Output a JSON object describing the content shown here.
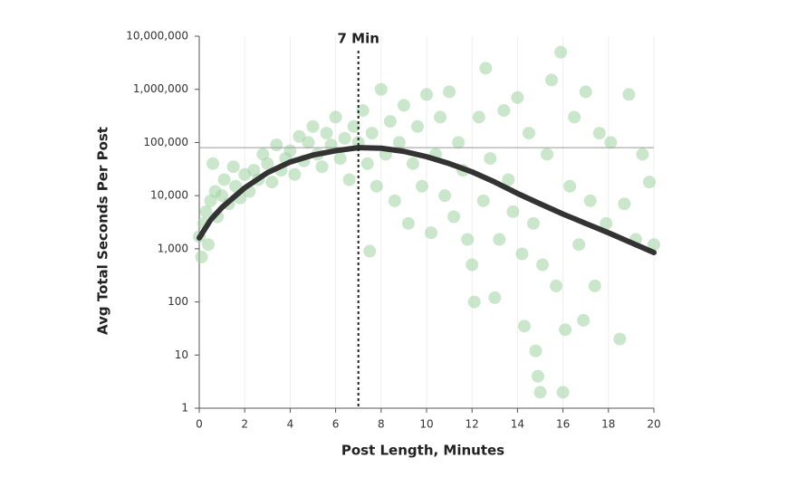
{
  "chart_data": {
    "type": "scatter",
    "x_label": "Post Length, Minutes",
    "y_label": "Avg Total Seconds Per Post",
    "xlim": [
      0,
      20
    ],
    "xticks": [
      0,
      2,
      4,
      6,
      8,
      10,
      12,
      14,
      16,
      18,
      20
    ],
    "ylim": [
      1,
      10000000
    ],
    "log_y": true,
    "grid": true,
    "yticks": [
      1,
      10,
      100,
      {
        "value": 1000,
        "label": "1,000"
      },
      {
        "value": 10000,
        "label": "10,000"
      },
      {
        "value": 100000,
        "label": "100,000"
      },
      {
        "value": 1000000,
        "label": "1,000,000"
      },
      {
        "value": 10000000,
        "label": "10,000,000"
      }
    ],
    "points": {
      "color": "#9fd4a3",
      "x": [
        0,
        0.1,
        0.2,
        0.3,
        0.4,
        0.5,
        0.6,
        0.7,
        0.8,
        1,
        1.1,
        1.3,
        1.5,
        1.6,
        1.8,
        2,
        2.2,
        2.4,
        2.6,
        2.8,
        3,
        3.2,
        3.4,
        3.6,
        3.8,
        4,
        4.2,
        4.4,
        4.6,
        4.8,
        5,
        5.2,
        5.4,
        5.6,
        5.8,
        6,
        6.2,
        6.4,
        6.6,
        6.8,
        7,
        7.2,
        7.4,
        7.5,
        7.6,
        7.8,
        8,
        8.2,
        8.4,
        8.6,
        8.8,
        9,
        9.2,
        9.4,
        9.6,
        9.8,
        10,
        10.2,
        10.4,
        10.6,
        10.8,
        11,
        11.2,
        11.4,
        11.6,
        11.8,
        12,
        12.1,
        12.3,
        12.5,
        12.6,
        12.8,
        13,
        13.2,
        13.4,
        13.6,
        13.8,
        14,
        14.2,
        14.3,
        14.5,
        14.7,
        14.8,
        14.9,
        15,
        15.1,
        15.3,
        15.5,
        15.7,
        15.9,
        16,
        16.1,
        16.3,
        16.5,
        16.7,
        16.9,
        17,
        17.2,
        17.4,
        17.6,
        17.9,
        18.1,
        18.5,
        18.7,
        18.9,
        19.2,
        19.5,
        19.8,
        20
      ],
      "values": [
        1700,
        700,
        3000,
        5000,
        1200,
        8000,
        40000,
        12000,
        4000,
        10000,
        20000,
        7000,
        35000,
        15000,
        9000,
        25000,
        12000,
        30000,
        20000,
        60000,
        40000,
        18000,
        90000,
        30000,
        50000,
        70000,
        25000,
        130000,
        45000,
        100000,
        200000,
        60000,
        35000,
        150000,
        90000,
        300000,
        50000,
        120000,
        20000,
        200000,
        100000,
        400000,
        40000,
        900,
        150000,
        15000,
        1000000,
        60000,
        250000,
        8000,
        100000,
        500000,
        3000,
        40000,
        200000,
        15000,
        800000,
        2000,
        60000,
        300000,
        10000,
        900000,
        4000,
        100000,
        30000,
        1500,
        500,
        100,
        300000,
        8000,
        2500000,
        50000,
        120,
        1500,
        400000,
        20000,
        5000,
        700000,
        800,
        35,
        150000,
        3000,
        12,
        4,
        2,
        500,
        60000,
        1500000,
        200,
        5000000,
        2,
        30,
        15000,
        300000,
        1200,
        45,
        900000,
        8000,
        200,
        150000,
        3000,
        100000,
        20,
        7000,
        800000,
        1500,
        60000,
        18000,
        1200
      ]
    },
    "curve": {
      "color": "#333333",
      "x": [
        0,
        0.5,
        1,
        2,
        3,
        4,
        5,
        6,
        7,
        8,
        9,
        10,
        11,
        12,
        13,
        14,
        15,
        16,
        17,
        18,
        19,
        20
      ],
      "values": [
        1600,
        3500,
        6000,
        14000,
        27000,
        43000,
        58000,
        70000,
        80000,
        78000,
        68000,
        54000,
        40000,
        28000,
        18000,
        11000,
        7000,
        4500,
        3000,
        2000,
        1300,
        850
      ]
    },
    "hline": 80000,
    "annotation": {
      "text": "7 Min",
      "x": 7
    }
  }
}
